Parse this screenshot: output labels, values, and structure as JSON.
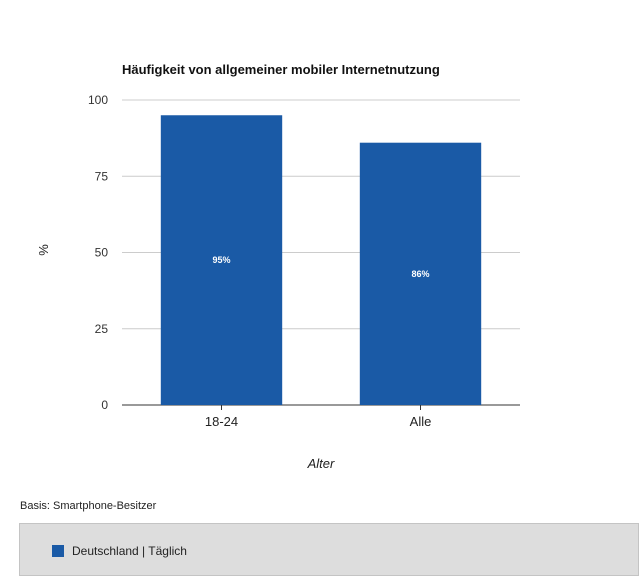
{
  "chart_data": {
    "type": "bar",
    "title": "Häufigkeit von allgemeiner mobiler Internetnutzung",
    "xlabel": "Alter",
    "ylabel": "%",
    "categories": [
      "18-24",
      "Alle"
    ],
    "series": [
      {
        "name": "Deutschland | Täglich",
        "values": [
          95,
          86
        ],
        "data_labels": [
          "95%",
          "86%"
        ],
        "color": "#1a5aa6"
      }
    ],
    "ylim": [
      0,
      100
    ],
    "yticks": [
      "0",
      "25",
      "50",
      "75",
      "100"
    ],
    "grid": true,
    "legend_position": "bottom"
  },
  "footnote": "Basis: Smartphone-Besitzer",
  "colors": {
    "bar": "#1a5aa6",
    "gridline": "#cccccc",
    "axis": "#333333",
    "legend_background": "#dddddd"
  }
}
